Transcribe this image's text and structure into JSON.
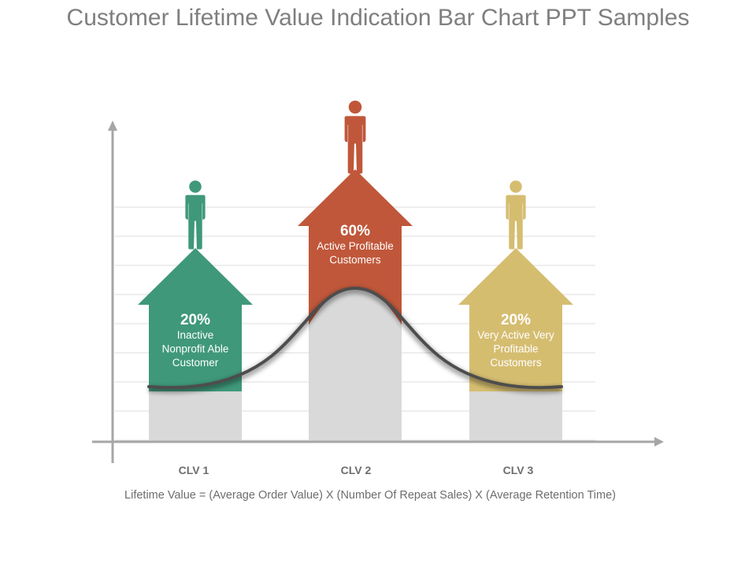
{
  "title": "Customer Lifetime Value Indication Bar Chart PPT Samples",
  "footnote": "Lifetime Value = (Average Order Value) X (Number Of Repeat Sales) X (Average Retention Time)",
  "chart_data": {
    "type": "bar",
    "categories": [
      "CLV 1",
      "CLV 2",
      "CLV 3"
    ],
    "values": [
      20,
      60,
      20
    ],
    "value_labels": [
      "20%",
      "60%",
      "20%"
    ],
    "descriptions": [
      [
        "Inactive",
        "Nonprofit Able",
        "Customer"
      ],
      [
        "Active Profitable",
        "Customers"
      ],
      [
        "Very Active Very",
        "Profitable",
        "Customers"
      ]
    ],
    "colors": [
      "#3f987a",
      "#c0573a",
      "#d5bd70"
    ],
    "grid": true
  }
}
